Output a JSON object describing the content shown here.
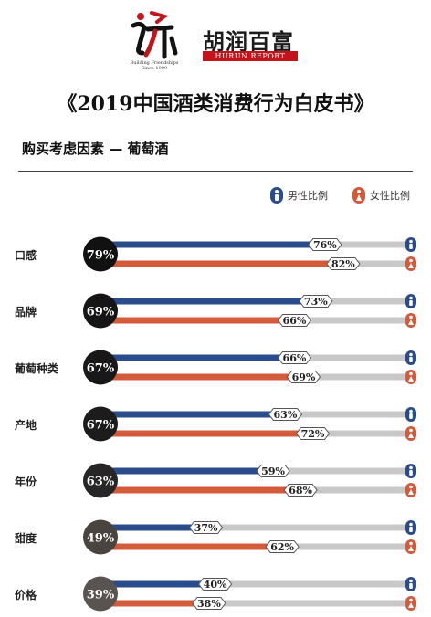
{
  "header": {
    "logo_tagline_1": "Building Friendships",
    "logo_tagline_2": "Since 1999",
    "brand_cn": "胡润百富",
    "brand_en": "HURUN REPORT"
  },
  "title": "《2019中国酒类消费行为白皮书》",
  "subtitle": "购买考虑因素 — 葡萄酒",
  "colors": {
    "male": "#2b4c8c",
    "female": "#d45a3c",
    "track": "#c8c8c8"
  },
  "chart_data": {
    "type": "bar",
    "orientation": "horizontal",
    "title": "购买考虑因素 — 葡萄酒",
    "categories": [
      "口感",
      "品牌",
      "葡萄种类",
      "产地",
      "年份",
      "甜度",
      "价格"
    ],
    "overall": [
      79,
      69,
      67,
      67,
      63,
      49,
      39
    ],
    "series": [
      {
        "name": "男性比例",
        "values": [
          76,
          73,
          66,
          63,
          59,
          37,
          40
        ]
      },
      {
        "name": "女性比例",
        "values": [
          82,
          66,
          69,
          72,
          68,
          62,
          38
        ]
      }
    ],
    "unit": "%",
    "xlim": [
      0,
      100
    ],
    "grid": false,
    "legend": "top-right"
  }
}
